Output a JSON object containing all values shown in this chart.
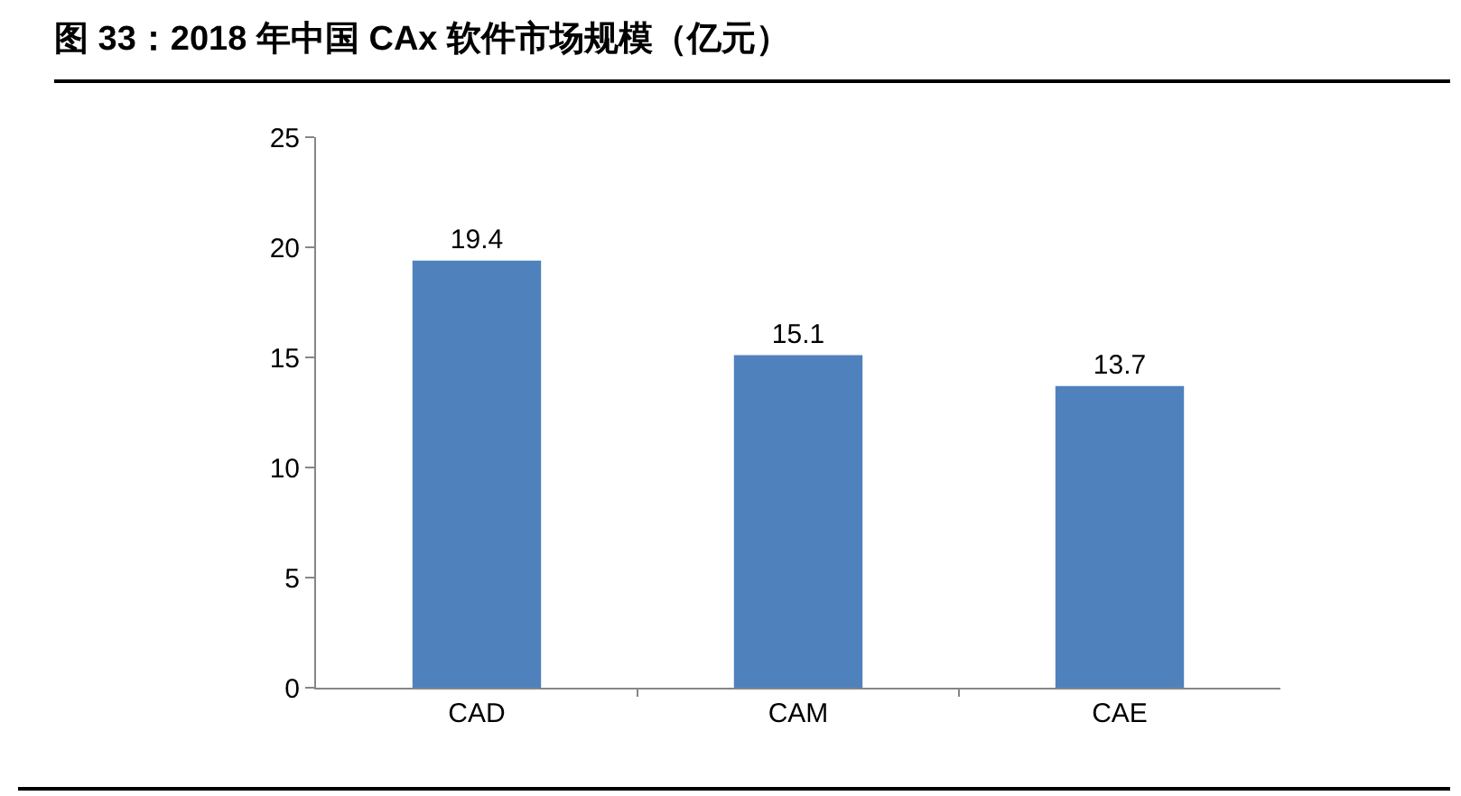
{
  "chart_data": {
    "type": "bar",
    "title": "图 33：2018 年中国 CAx 软件市场规模（亿元）",
    "categories": [
      "CAD",
      "CAM",
      "CAE"
    ],
    "values": [
      19.4,
      15.1,
      13.7
    ],
    "color": "#4f81bd",
    "ylim": [
      0,
      25
    ],
    "yticks": [
      0,
      5,
      10,
      15,
      20,
      25
    ],
    "data_labels": true
  }
}
